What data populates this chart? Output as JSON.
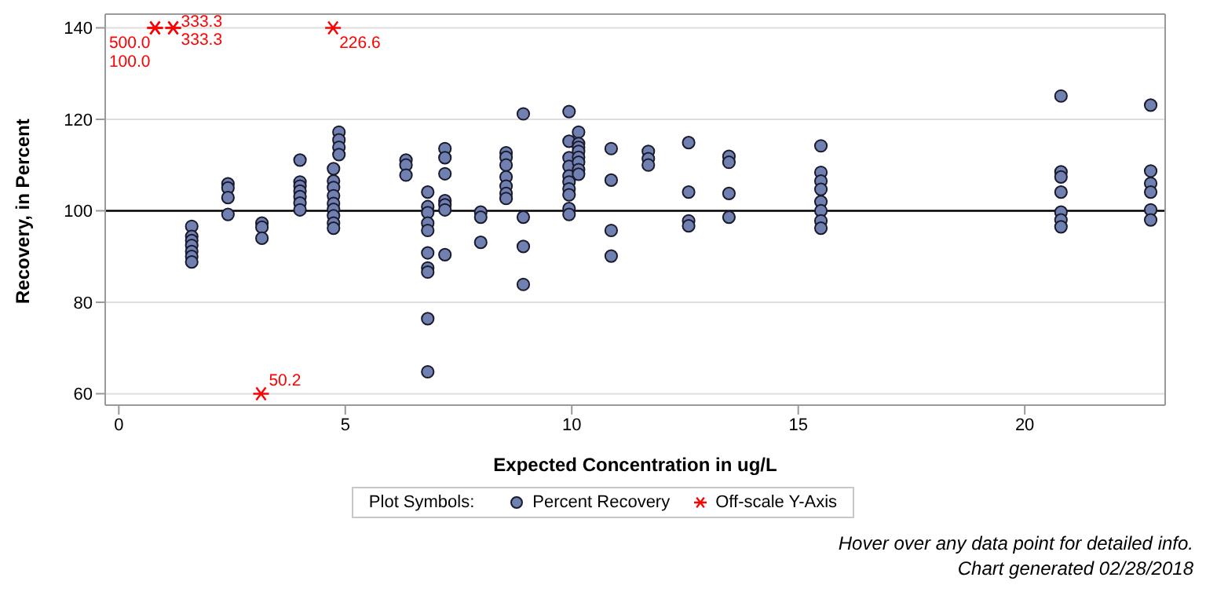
{
  "chart_data": {
    "type": "scatter",
    "xlabel": "Expected Concentration in ug/L",
    "ylabel": "Recovery, in Percent",
    "xlim": [
      -0.3,
      23.1
    ],
    "xticks": [
      0,
      5,
      10,
      15,
      20
    ],
    "ylim": [
      57.5,
      143
    ],
    "yticks": [
      60,
      80,
      100,
      120,
      140
    ],
    "grid": "y",
    "legend": "bottom",
    "legend_title": "Plot Symbols:",
    "ref_lines": [
      {
        "axis": "y",
        "value": 100,
        "label": null,
        "color": "#000000"
      }
    ],
    "annotations": [
      "Hover over any data point for detailed info.",
      "Chart generated 02/28/2018",
      {
        "text": "500.0",
        "x": 0.8,
        "y": 140
      },
      {
        "text": "100.0",
        "x": 0.8,
        "y": 140
      },
      {
        "text": "333.3",
        "x": 1.2,
        "y": 140
      },
      {
        "text": "333.3",
        "x": 1.2,
        "y": 140
      },
      {
        "text": "226.6",
        "x": 4.73,
        "y": 140
      },
      {
        "text": "50.2",
        "x": 3.14,
        "y": 60
      }
    ],
    "series": [
      {
        "name": "Percent Recovery",
        "color": "#7080b0",
        "marker": "circle",
        "x": [
          1.61,
          1.61,
          1.61,
          1.61,
          1.61,
          1.61,
          1.61,
          2.41,
          2.41,
          2.41,
          2.41,
          3.16,
          3.16,
          3.16,
          4.0,
          4.0,
          4.0,
          4.0,
          4.0,
          4.0,
          4.0,
          4.74,
          4.74,
          4.74,
          4.74,
          4.74,
          4.74,
          4.74,
          4.74,
          4.74,
          4.86,
          4.86,
          4.86,
          4.86,
          6.34,
          6.34,
          6.34,
          6.82,
          6.82,
          6.82,
          6.82,
          6.82,
          6.82,
          6.82,
          6.82,
          6.82,
          6.82,
          7.2,
          7.2,
          7.2,
          7.2,
          7.2,
          7.2,
          7.2,
          7.99,
          7.99,
          7.99,
          8.55,
          8.55,
          8.55,
          8.55,
          8.55,
          8.55,
          8.55,
          8.93,
          8.93,
          8.93,
          8.93,
          9.94,
          9.94,
          9.94,
          9.94,
          9.94,
          9.94,
          9.94,
          9.94,
          9.94,
          9.94,
          10.15,
          10.15,
          10.15,
          10.15,
          10.15,
          10.15,
          10.15,
          10.15,
          10.87,
          10.87,
          10.87,
          10.87,
          11.69,
          11.69,
          11.69,
          12.58,
          12.58,
          12.58,
          12.58,
          13.47,
          13.47,
          13.47,
          13.47,
          15.5,
          15.5,
          15.5,
          15.5,
          15.5,
          15.5,
          15.5,
          15.5,
          20.8,
          20.8,
          20.8,
          20.8,
          20.8,
          20.8,
          20.8,
          22.78,
          22.78,
          22.78,
          22.78,
          22.78,
          22.78
        ],
        "values": [
          96.6,
          94.4,
          93.5,
          92.4,
          91.1,
          90.0,
          88.8,
          105.9,
          105.0,
          102.9,
          99.2,
          97.3,
          96.4,
          94.0,
          111.1,
          106.3,
          105.4,
          104.3,
          103.1,
          101.7,
          100.2,
          109.2,
          106.5,
          105.1,
          103.3,
          101.6,
          100.3,
          98.9,
          97.3,
          96.2,
          117.2,
          115.5,
          113.9,
          112.3,
          111.1,
          110.0,
          107.8,
          104.1,
          100.9,
          99.6,
          97.3,
          95.7,
          90.8,
          87.5,
          86.6,
          76.4,
          64.8,
          113.6,
          111.6,
          108.1,
          102.2,
          101.3,
          100.2,
          90.4,
          99.7,
          98.6,
          93.1,
          112.7,
          111.7,
          110.0,
          107.4,
          105.4,
          103.8,
          102.7,
          121.2,
          98.6,
          92.2,
          83.9,
          121.7,
          115.2,
          111.6,
          109.7,
          107.6,
          106.3,
          104.8,
          103.5,
          100.5,
          99.2,
          117.2,
          114.7,
          113.9,
          113.0,
          111.7,
          110.6,
          109.0,
          108.0,
          113.6,
          106.7,
          95.7,
          90.1,
          113.0,
          111.4,
          110.0,
          114.9,
          104.1,
          97.8,
          96.7,
          111.9,
          110.6,
          103.8,
          98.6,
          114.2,
          108.4,
          106.5,
          104.7,
          102.0,
          100.0,
          97.8,
          96.2,
          125.1,
          108.5,
          107.4,
          104.1,
          99.7,
          98.0,
          96.5,
          123.1,
          108.7,
          106.0,
          104.1,
          100.2,
          98.0
        ]
      },
      {
        "name": "Off-scale Y-Axis",
        "color": "#ff0000",
        "marker": "cross",
        "x": [
          0.8,
          0.8,
          1.2,
          1.2,
          4.73,
          3.14
        ],
        "values": [
          140,
          140,
          140,
          140,
          140,
          60
        ]
      }
    ]
  }
}
